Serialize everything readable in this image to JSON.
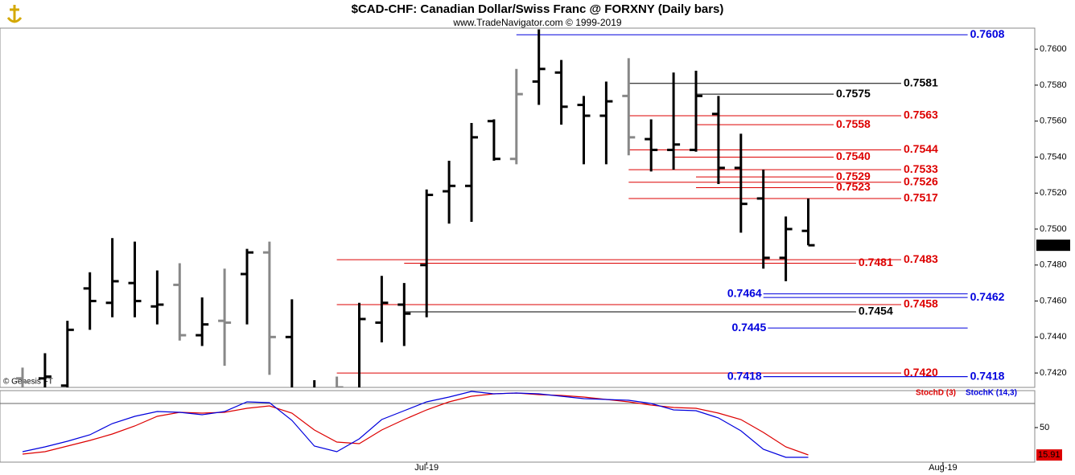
{
  "chart_data": [
    {
      "type": "ohlc",
      "title": "$CAD-CHF:  Canadian Dollar/Swiss Franc @ FORXNY  (Daily bars)",
      "subtitle": "www.TradeNavigator.com © 1999-2019",
      "watermark": "© Genesis FT",
      "categories": [
        null,
        null,
        null,
        null,
        null,
        null,
        null,
        null,
        null,
        null,
        null,
        null,
        null,
        null,
        null,
        null,
        null,
        null,
        "Jul-19",
        null,
        null,
        null,
        null,
        null,
        null,
        null,
        null,
        null,
        null,
        null,
        null,
        null,
        null,
        null,
        null,
        null,
        null,
        null,
        null,
        null,
        null,
        "Aug-19"
      ],
      "open": [
        0.7417,
        0.7417,
        0.7413,
        0.7467,
        0.7459,
        0.747,
        0.7457,
        0.7469,
        0.7441,
        0.7449,
        0.7475,
        0.7487,
        0.744,
        0.7408,
        0.7411,
        0.741,
        0.7448,
        0.7458,
        0.748,
        0.7521,
        0.7524,
        0.756,
        0.7539,
        0.7582,
        0.7587,
        0.7569,
        0.7563,
        0.7574,
        0.755,
        0.7544,
        0.7544,
        0.7564,
        0.7534,
        0.7517,
        0.7484,
        0.7499,
        null,
        null,
        null,
        null,
        null,
        null
      ],
      "high": [
        0.7423,
        0.7431,
        0.7449,
        0.7476,
        0.7495,
        0.7493,
        0.7477,
        0.7481,
        0.7462,
        0.7478,
        0.7489,
        0.7493,
        0.7461,
        0.7416,
        0.7418,
        0.7459,
        0.7474,
        0.747,
        0.7522,
        0.7538,
        0.7559,
        0.7561,
        0.7589,
        0.7611,
        0.7594,
        0.7574,
        0.7582,
        0.7595,
        0.7561,
        0.7587,
        0.7588,
        0.7574,
        0.7553,
        0.7533,
        0.7507,
        0.7517,
        null,
        null,
        null,
        null,
        null,
        null
      ],
      "low": [
        0.7404,
        0.7404,
        0.7404,
        0.7444,
        0.7451,
        0.7451,
        0.7447,
        0.7438,
        0.7435,
        0.7424,
        0.7447,
        0.7419,
        0.7404,
        0.7404,
        0.7404,
        0.7404,
        0.7437,
        0.7435,
        0.7451,
        0.7503,
        0.7504,
        0.7538,
        0.7536,
        0.7569,
        0.7558,
        0.7536,
        0.7536,
        0.7541,
        0.7532,
        0.7533,
        0.7543,
        0.7525,
        0.7498,
        0.7478,
        0.7471,
        0.7491,
        null,
        null,
        null,
        null,
        null,
        null
      ],
      "close": [
        0.7415,
        0.7418,
        0.7444,
        0.746,
        0.7471,
        0.746,
        0.7458,
        0.7441,
        0.7447,
        0.7448,
        0.7487,
        0.744,
        0.741,
        0.741,
        0.7412,
        0.745,
        0.7459,
        0.7453,
        0.7519,
        0.7524,
        0.7551,
        0.7539,
        0.7575,
        0.7589,
        0.7568,
        0.7563,
        0.7571,
        0.7551,
        0.7544,
        0.7547,
        0.7574,
        0.7534,
        0.7514,
        0.7484,
        0.75,
        0.7491,
        null,
        null,
        null,
        null,
        null,
        null
      ],
      "colors": [
        "#888888",
        "#000000",
        "#000000",
        "#000000",
        "#000000",
        "#000000",
        "#000000",
        "#888888",
        "#000000",
        "#888888",
        "#000000",
        "#888888",
        "#000000",
        "#000000",
        "#888888",
        "#000000",
        "#000000",
        "#000000",
        "#000000",
        "#000000",
        "#000000",
        "#000000",
        "#888888",
        "#000000",
        "#000000",
        "#000000",
        "#000000",
        "#888888",
        "#000000",
        "#000000",
        "#000000",
        "#000000",
        "#000000",
        "#000000",
        "#000000",
        "#000000",
        null,
        null,
        null,
        null,
        null,
        null
      ],
      "ylim": [
        0.7412,
        0.7612
      ],
      "yticks": [
        {
          "value": 0.742,
          "label": "0.7420"
        },
        {
          "value": 0.744,
          "label": "0.7440"
        },
        {
          "value": 0.746,
          "label": "0.7460"
        },
        {
          "value": 0.748,
          "label": "0.7480"
        },
        {
          "value": 0.75,
          "label": "0.7500"
        },
        {
          "value": 0.752,
          "label": "0.7520"
        },
        {
          "value": 0.754,
          "label": "0.7540"
        },
        {
          "value": 0.756,
          "label": "0.7560"
        },
        {
          "value": 0.758,
          "label": "0.7580"
        },
        {
          "value": 0.76,
          "label": "0.7600"
        }
      ],
      "last_price": 0.7491,
      "levels": [
        {
          "value": 0.7608,
          "color": "#0000dd",
          "from": 22,
          "to": 42.1,
          "side": "right"
        },
        {
          "value": 0.7581,
          "color": "#000000",
          "from": 27,
          "to": 39.14,
          "side": "right"
        },
        {
          "value": 0.7575,
          "color": "#000000",
          "from": 30,
          "to": 36.13,
          "side": "right"
        },
        {
          "value": 0.7563,
          "color": "#dd0000",
          "from": 27,
          "to": 39.14,
          "side": "right"
        },
        {
          "value": 0.7558,
          "color": "#dd0000",
          "from": 30,
          "to": 36.13,
          "side": "right"
        },
        {
          "value": 0.7544,
          "color": "#dd0000",
          "from": 27,
          "to": 39.14,
          "side": "right"
        },
        {
          "value": 0.754,
          "label": "0.7540",
          "color": "#dd0000",
          "from": 29,
          "to": 36.13,
          "side": "right"
        },
        {
          "value": 0.7533,
          "color": "#dd0000",
          "from": 27,
          "to": 39.14,
          "side": "right"
        },
        {
          "value": 0.7529,
          "color": "#dd0000",
          "from": 30,
          "to": 36.13,
          "side": "right"
        },
        {
          "value": 0.7526,
          "color": "#dd0000",
          "from": 27,
          "to": 39.14,
          "side": "right"
        },
        {
          "value": 0.7523,
          "color": "#dd0000",
          "from": 30,
          "to": 36.13,
          "side": "right"
        },
        {
          "value": 0.7517,
          "color": "#dd0000",
          "from": 27,
          "to": 39.14,
          "side": "right"
        },
        {
          "value": 0.7483,
          "color": "#dd0000",
          "from": 14,
          "to": 39.14,
          "side": "right"
        },
        {
          "value": 0.7481,
          "color": "#dd0000",
          "from": 17,
          "to": 37.13,
          "side": "right"
        },
        {
          "value": 0.7464,
          "color": "#0000dd",
          "from": 33,
          "to": 42.1,
          "side": "left"
        },
        {
          "value": 0.7462,
          "color": "#0000dd",
          "from": 33,
          "to": 42.1,
          "side": "right"
        },
        {
          "value": 0.7458,
          "color": "#dd0000",
          "from": 14,
          "to": 39.14,
          "side": "right"
        },
        {
          "value": 0.7454,
          "color": "#000000",
          "from": 17,
          "to": 37.13,
          "side": "right"
        },
        {
          "value": 0.7445,
          "color": "#0000dd",
          "from": 33.2,
          "to": 42.1,
          "side": "left"
        },
        {
          "value": 0.742,
          "label": "0.7420",
          "color": "#dd0000",
          "from": 14,
          "to": 39.14,
          "side": "right"
        },
        {
          "value": 0.7418,
          "color": "#0000dd",
          "from": 33,
          "to": 42.1,
          "side": "left"
        },
        {
          "value": 0.7418,
          "color": "#0000dd",
          "from": 33,
          "to": 42.1,
          "side": "right"
        }
      ]
    },
    {
      "type": "line",
      "series": [
        {
          "name": "StochD (3)",
          "color": "#dd0000",
          "values": [
            17,
            20,
            27,
            34,
            42,
            52,
            64,
            69,
            68,
            69,
            74,
            77,
            68,
            47,
            32,
            30,
            47,
            60,
            72,
            82,
            89,
            92,
            93,
            91,
            90,
            88,
            85,
            82,
            78,
            75,
            74,
            68,
            60,
            44,
            26,
            16,
            null,
            null,
            null,
            null,
            null,
            null
          ]
        },
        {
          "name": "StochK (14,3)",
          "color": "#0000dd",
          "values": [
            20,
            26,
            33,
            41,
            55,
            64,
            70,
            69,
            66,
            70,
            82,
            81,
            59,
            27,
            20,
            36,
            60,
            71,
            82,
            88,
            95,
            92,
            93,
            92,
            89,
            86,
            85,
            84,
            80,
            72,
            71,
            62,
            46,
            23,
            13,
            13,
            null,
            null,
            null,
            null,
            null,
            null
          ]
        }
      ],
      "ylim": [
        7,
        96
      ],
      "yticks": [
        50
      ],
      "ref_lines": [
        80
      ],
      "last_value": 15.91
    }
  ]
}
